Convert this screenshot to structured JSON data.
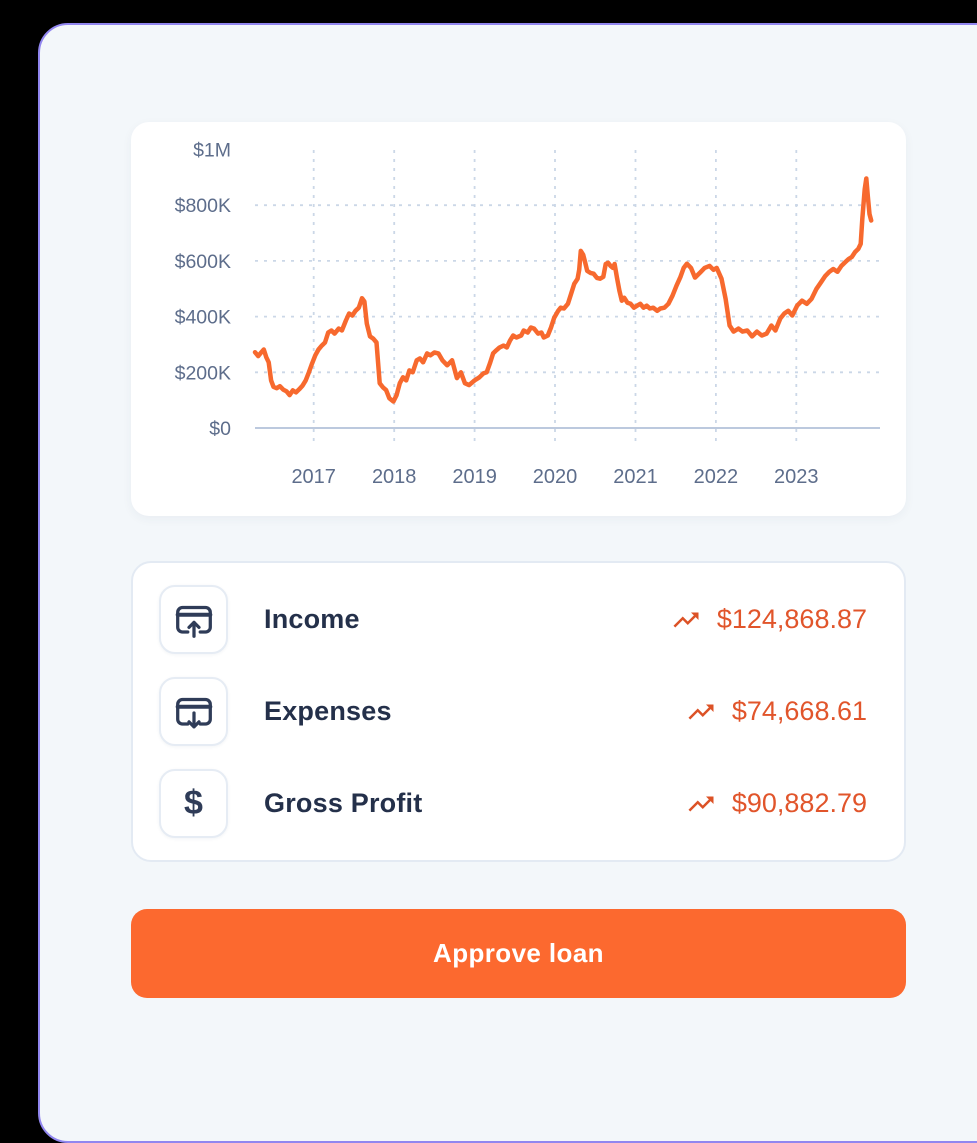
{
  "colors": {
    "accent_orange": "#F7692E",
    "button_orange": "#FC692F",
    "value_orange": "#E1552B",
    "trend_orange": "#DC5226",
    "navy_text": "#24304A",
    "tick_text": "#5D6D8B",
    "panel_border_purple": "#9186EF",
    "panel_background": "#F3F7FA",
    "card_border": "#E3EAF3",
    "grid_line": "#CBD7E7",
    "axis_line": "#BCC9DE"
  },
  "chart_data": {
    "type": "line",
    "title": "",
    "xlabel": "",
    "ylabel": "",
    "unit": "USD",
    "line_color": "#F7692E",
    "grid": "dashed",
    "legend": "none",
    "x_domain_years": [
      2016.27,
      2024.04
    ],
    "ylim_k": [
      0,
      1000
    ],
    "y_ticks": [
      {
        "label": "$1M",
        "value_k": 1000
      },
      {
        "label": "$800K",
        "value_k": 800
      },
      {
        "label": "$600K",
        "value_k": 600
      },
      {
        "label": "$400K",
        "value_k": 400
      },
      {
        "label": "$200K",
        "value_k": 200
      },
      {
        "label": "$0",
        "value_k": 0
      }
    ],
    "x_ticks": [
      {
        "label": "2017",
        "year": 2017
      },
      {
        "label": "2018",
        "year": 2018
      },
      {
        "label": "2019",
        "year": 2019
      },
      {
        "label": "2020",
        "year": 2020
      },
      {
        "label": "2021",
        "year": 2021
      },
      {
        "label": "2022",
        "year": 2022
      },
      {
        "label": "2023",
        "year": 2023
      }
    ],
    "x_years": [
      2016.27,
      2016.31,
      2016.35,
      2016.38,
      2016.41,
      2016.44,
      2016.47,
      2016.5,
      2016.54,
      2016.58,
      2016.62,
      2016.66,
      2016.7,
      2016.74,
      2016.78,
      2016.82,
      2016.86,
      2016.9,
      2016.94,
      2016.98,
      2017.02,
      2017.06,
      2017.1,
      2017.14,
      2017.18,
      2017.22,
      2017.26,
      2017.31,
      2017.35,
      2017.4,
      2017.44,
      2017.48,
      2017.52,
      2017.56,
      2017.6,
      2017.63,
      2017.66,
      2017.7,
      2017.74,
      2017.78,
      2017.82,
      2017.86,
      2017.9,
      2017.94,
      2017.99,
      2018.03,
      2018.07,
      2018.11,
      2018.15,
      2018.19,
      2018.23,
      2018.28,
      2018.32,
      2018.36,
      2018.41,
      2018.45,
      2018.5,
      2018.55,
      2018.6,
      2018.66,
      2018.72,
      2018.78,
      2018.83,
      2018.88,
      2018.93,
      2019.0,
      2019.06,
      2019.11,
      2019.15,
      2019.19,
      2019.23,
      2019.27,
      2019.31,
      2019.36,
      2019.4,
      2019.44,
      2019.48,
      2019.52,
      2019.58,
      2019.61,
      2019.66,
      2019.7,
      2019.74,
      2019.79,
      2019.83,
      2019.86,
      2019.91,
      2019.95,
      2019.99,
      2020.04,
      2020.07,
      2020.11,
      2020.16,
      2020.2,
      2020.24,
      2020.28,
      2020.3,
      2020.32,
      2020.35,
      2020.37,
      2020.4,
      2020.44,
      2020.48,
      2020.52,
      2020.56,
      2020.6,
      2020.63,
      2020.66,
      2020.69,
      2020.72,
      2020.74,
      2020.77,
      2020.8,
      2020.83,
      2020.86,
      2020.9,
      2020.94,
      2020.98,
      2021.02,
      2021.06,
      2021.1,
      2021.14,
      2021.18,
      2021.22,
      2021.27,
      2021.31,
      2021.36,
      2021.41,
      2021.46,
      2021.51,
      2021.56,
      2021.6,
      2021.64,
      2021.69,
      2021.74,
      2021.8,
      2021.86,
      2021.92,
      2021.97,
      2022.01,
      2022.07,
      2022.12,
      2022.17,
      2022.22,
      2022.28,
      2022.33,
      2022.39,
      2022.45,
      2022.51,
      2022.57,
      2022.63,
      2022.69,
      2022.74,
      2022.8,
      2022.85,
      2022.9,
      2022.95,
      2023.01,
      2023.07,
      2023.13,
      2023.19,
      2023.25,
      2023.31,
      2023.36,
      2023.41,
      2023.46,
      2023.51,
      2023.56,
      2023.61,
      2023.65,
      2023.69,
      2023.73,
      2023.77,
      2023.8,
      2023.82,
      2023.85,
      2023.87,
      2023.89,
      2023.91,
      2023.93
    ],
    "values_k": [
      272,
      258,
      272,
      282,
      254,
      236,
      171,
      148,
      143,
      150,
      138,
      132,
      118,
      135,
      128,
      139,
      152,
      171,
      200,
      232,
      261,
      282,
      296,
      307,
      343,
      350,
      339,
      357,
      350,
      386,
      411,
      404,
      421,
      432,
      466,
      454,
      375,
      329,
      321,
      307,
      161,
      146,
      136,
      107,
      95,
      118,
      161,
      182,
      171,
      207,
      200,
      243,
      250,
      236,
      268,
      261,
      271,
      268,
      243,
      225,
      243,
      179,
      200,
      161,
      154,
      171,
      182,
      196,
      200,
      232,
      268,
      279,
      289,
      296,
      289,
      314,
      332,
      325,
      332,
      350,
      343,
      361,
      357,
      339,
      343,
      325,
      332,
      361,
      396,
      421,
      432,
      429,
      446,
      482,
      518,
      536,
      568,
      636,
      622,
      600,
      564,
      557,
      554,
      539,
      536,
      543,
      589,
      593,
      582,
      575,
      589,
      539,
      493,
      457,
      468,
      450,
      446,
      432,
      439,
      446,
      432,
      439,
      429,
      432,
      421,
      429,
      432,
      446,
      475,
      511,
      543,
      575,
      590,
      575,
      540,
      557,
      575,
      582,
      568,
      575,
      536,
      464,
      368,
      346,
      357,
      346,
      350,
      329,
      346,
      332,
      339,
      368,
      350,
      393,
      411,
      421,
      404,
      439,
      457,
      446,
      464,
      500,
      525,
      546,
      561,
      571,
      561,
      582,
      596,
      607,
      614,
      632,
      643,
      661,
      750,
      857,
      896,
      829,
      768,
      745
    ]
  },
  "summary": {
    "rows": [
      {
        "icon": "card-arrow-up-icon",
        "label": "Income",
        "trend_icon": "trending-up-icon",
        "value": "$124,868.87"
      },
      {
        "icon": "card-arrow-down-icon",
        "label": "Expenses",
        "trend_icon": "trending-up-icon",
        "value": "$74,668.61"
      },
      {
        "icon": "dollar-icon",
        "label": "Gross Profit",
        "trend_icon": "trending-up-icon",
        "value": "$90,882.79",
        "icon_glyph": "$"
      }
    ]
  },
  "button": {
    "label": "Approve loan"
  }
}
